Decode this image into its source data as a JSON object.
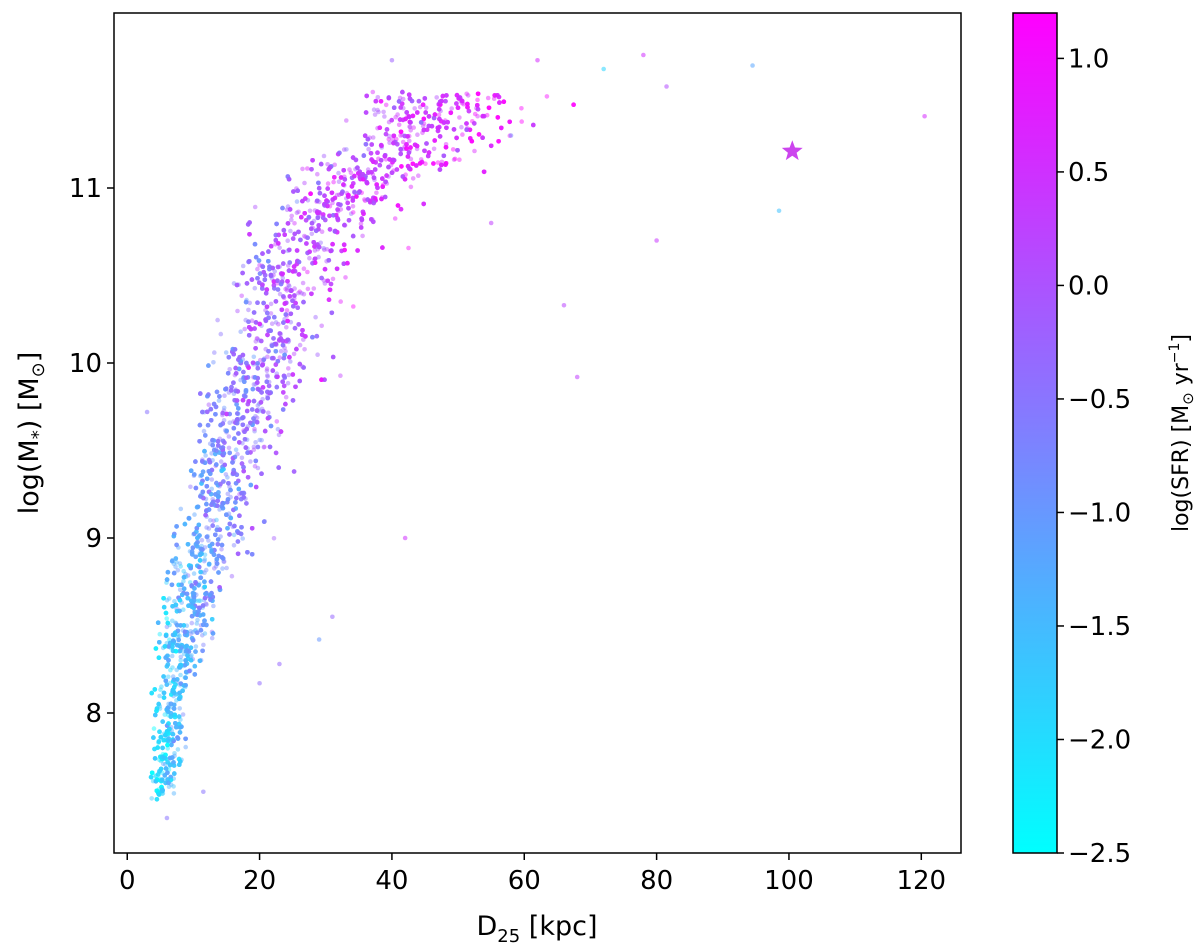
{
  "chart_data": {
    "type": "scatter",
    "title": "",
    "xlabel_main": "D",
    "xlabel_sub": "25",
    "xlabel_rest": " [kpc]",
    "ylabel_main": "log(M",
    "ylabel_sub": "*",
    "ylabel_rest": ") [M",
    "ylabel_sun": "⊙",
    "ylabel_end": "]",
    "xlim": [
      -2,
      126
    ],
    "ylim": [
      7.2,
      12.0
    ],
    "xticks": [
      0,
      20,
      40,
      60,
      80,
      100,
      120
    ],
    "xtick_labels": [
      "0",
      "20",
      "40",
      "60",
      "80",
      "100",
      "120"
    ],
    "yticks": [
      8,
      9,
      10,
      11
    ],
    "ytick_labels": [
      "8",
      "9",
      "10",
      "11"
    ],
    "grid": false,
    "colormap": {
      "name": "cool",
      "low_color": "#00ffff",
      "high_color": "#ff00ff",
      "range": [
        -2.5,
        1.2
      ]
    },
    "colorbar": {
      "label_main": "log(SFR) [M",
      "label_sun": "⊙",
      "label_rest": " yr",
      "label_sup": "−1",
      "label_end": "]",
      "ticks": [
        -2.5,
        -2.0,
        -1.5,
        -1.0,
        -0.5,
        0.0,
        0.5,
        1.0
      ],
      "tick_labels": [
        "−2.5",
        "−2.0",
        "−1.5",
        "−1.0",
        "−0.5",
        "0.0",
        "0.5",
        "1.0"
      ]
    },
    "highlight": {
      "marker": "star",
      "x": 100.5,
      "y": 11.21,
      "sfr": 0.3,
      "color": "#cc44ee"
    },
    "outliers": [
      {
        "x": 120.5,
        "y": 11.41,
        "sfr": 0.6
      },
      {
        "x": 98.5,
        "y": 10.87,
        "sfr": -1.6
      },
      {
        "x": 94.5,
        "y": 11.7,
        "sfr": -1.2
      },
      {
        "x": 78.0,
        "y": 11.76,
        "sfr": 0.5
      },
      {
        "x": 81.5,
        "y": 11.58,
        "sfr": 0.1
      },
      {
        "x": 80.0,
        "y": 10.7,
        "sfr": 0.4
      },
      {
        "x": 68.0,
        "y": 9.92,
        "sfr": 0.3
      },
      {
        "x": 72.0,
        "y": 11.68,
        "sfr": -1.9
      },
      {
        "x": 66.0,
        "y": 10.33,
        "sfr": 0.2
      },
      {
        "x": 62.0,
        "y": 11.73,
        "sfr": 0.6
      },
      {
        "x": 40.0,
        "y": 11.73,
        "sfr": -0.2
      },
      {
        "x": 31.0,
        "y": 8.55,
        "sfr": -0.3
      },
      {
        "x": 42.0,
        "y": 9.0,
        "sfr": 0.5
      },
      {
        "x": 3.0,
        "y": 9.72,
        "sfr": -0.5
      },
      {
        "x": 6.0,
        "y": 7.4,
        "sfr": -0.5
      },
      {
        "x": 11.5,
        "y": 7.55,
        "sfr": -0.5
      },
      {
        "x": 23.0,
        "y": 8.28,
        "sfr": -0.3
      },
      {
        "x": 20.0,
        "y": 8.17,
        "sfr": -0.4
      },
      {
        "x": 29.0,
        "y": 8.42,
        "sfr": -1.0
      },
      {
        "x": 55.0,
        "y": 10.8,
        "sfr": 0.3
      },
      {
        "x": 58.0,
        "y": 11.3,
        "sfr": -0.7
      }
    ],
    "series": [
      {
        "name": "",
        "note_points_sampled": "dense band: D25 spread around mean ridge as a function of log M*",
        "ridge": [
          {
            "y": 7.6,
            "x_center": 5.5,
            "x_spread": 1.5,
            "sfr_center": -1.8
          },
          {
            "y": 8.0,
            "x_center": 6.5,
            "x_spread": 2.2,
            "sfr_center": -1.6
          },
          {
            "y": 8.5,
            "x_center": 8.5,
            "x_spread": 3.2,
            "sfr_center": -1.3
          },
          {
            "y": 9.0,
            "x_center": 12.0,
            "x_spread": 4.5,
            "sfr_center": -1.0
          },
          {
            "y": 9.5,
            "x_center": 15.5,
            "x_spread": 5.5,
            "sfr_center": -0.6
          },
          {
            "y": 10.0,
            "x_center": 19.5,
            "x_spread": 6.0,
            "sfr_center": -0.3
          },
          {
            "y": 10.5,
            "x_center": 24.0,
            "x_spread": 7.0,
            "sfr_center": 0.0
          },
          {
            "y": 10.8,
            "x_center": 29.0,
            "x_spread": 8.0,
            "sfr_center": 0.2
          },
          {
            "y": 11.1,
            "x_center": 36.0,
            "x_spread": 9.0,
            "sfr_center": 0.4
          },
          {
            "y": 11.35,
            "x_center": 46.0,
            "x_spread": 10.0,
            "sfr_center": 0.5
          }
        ]
      }
    ]
  }
}
